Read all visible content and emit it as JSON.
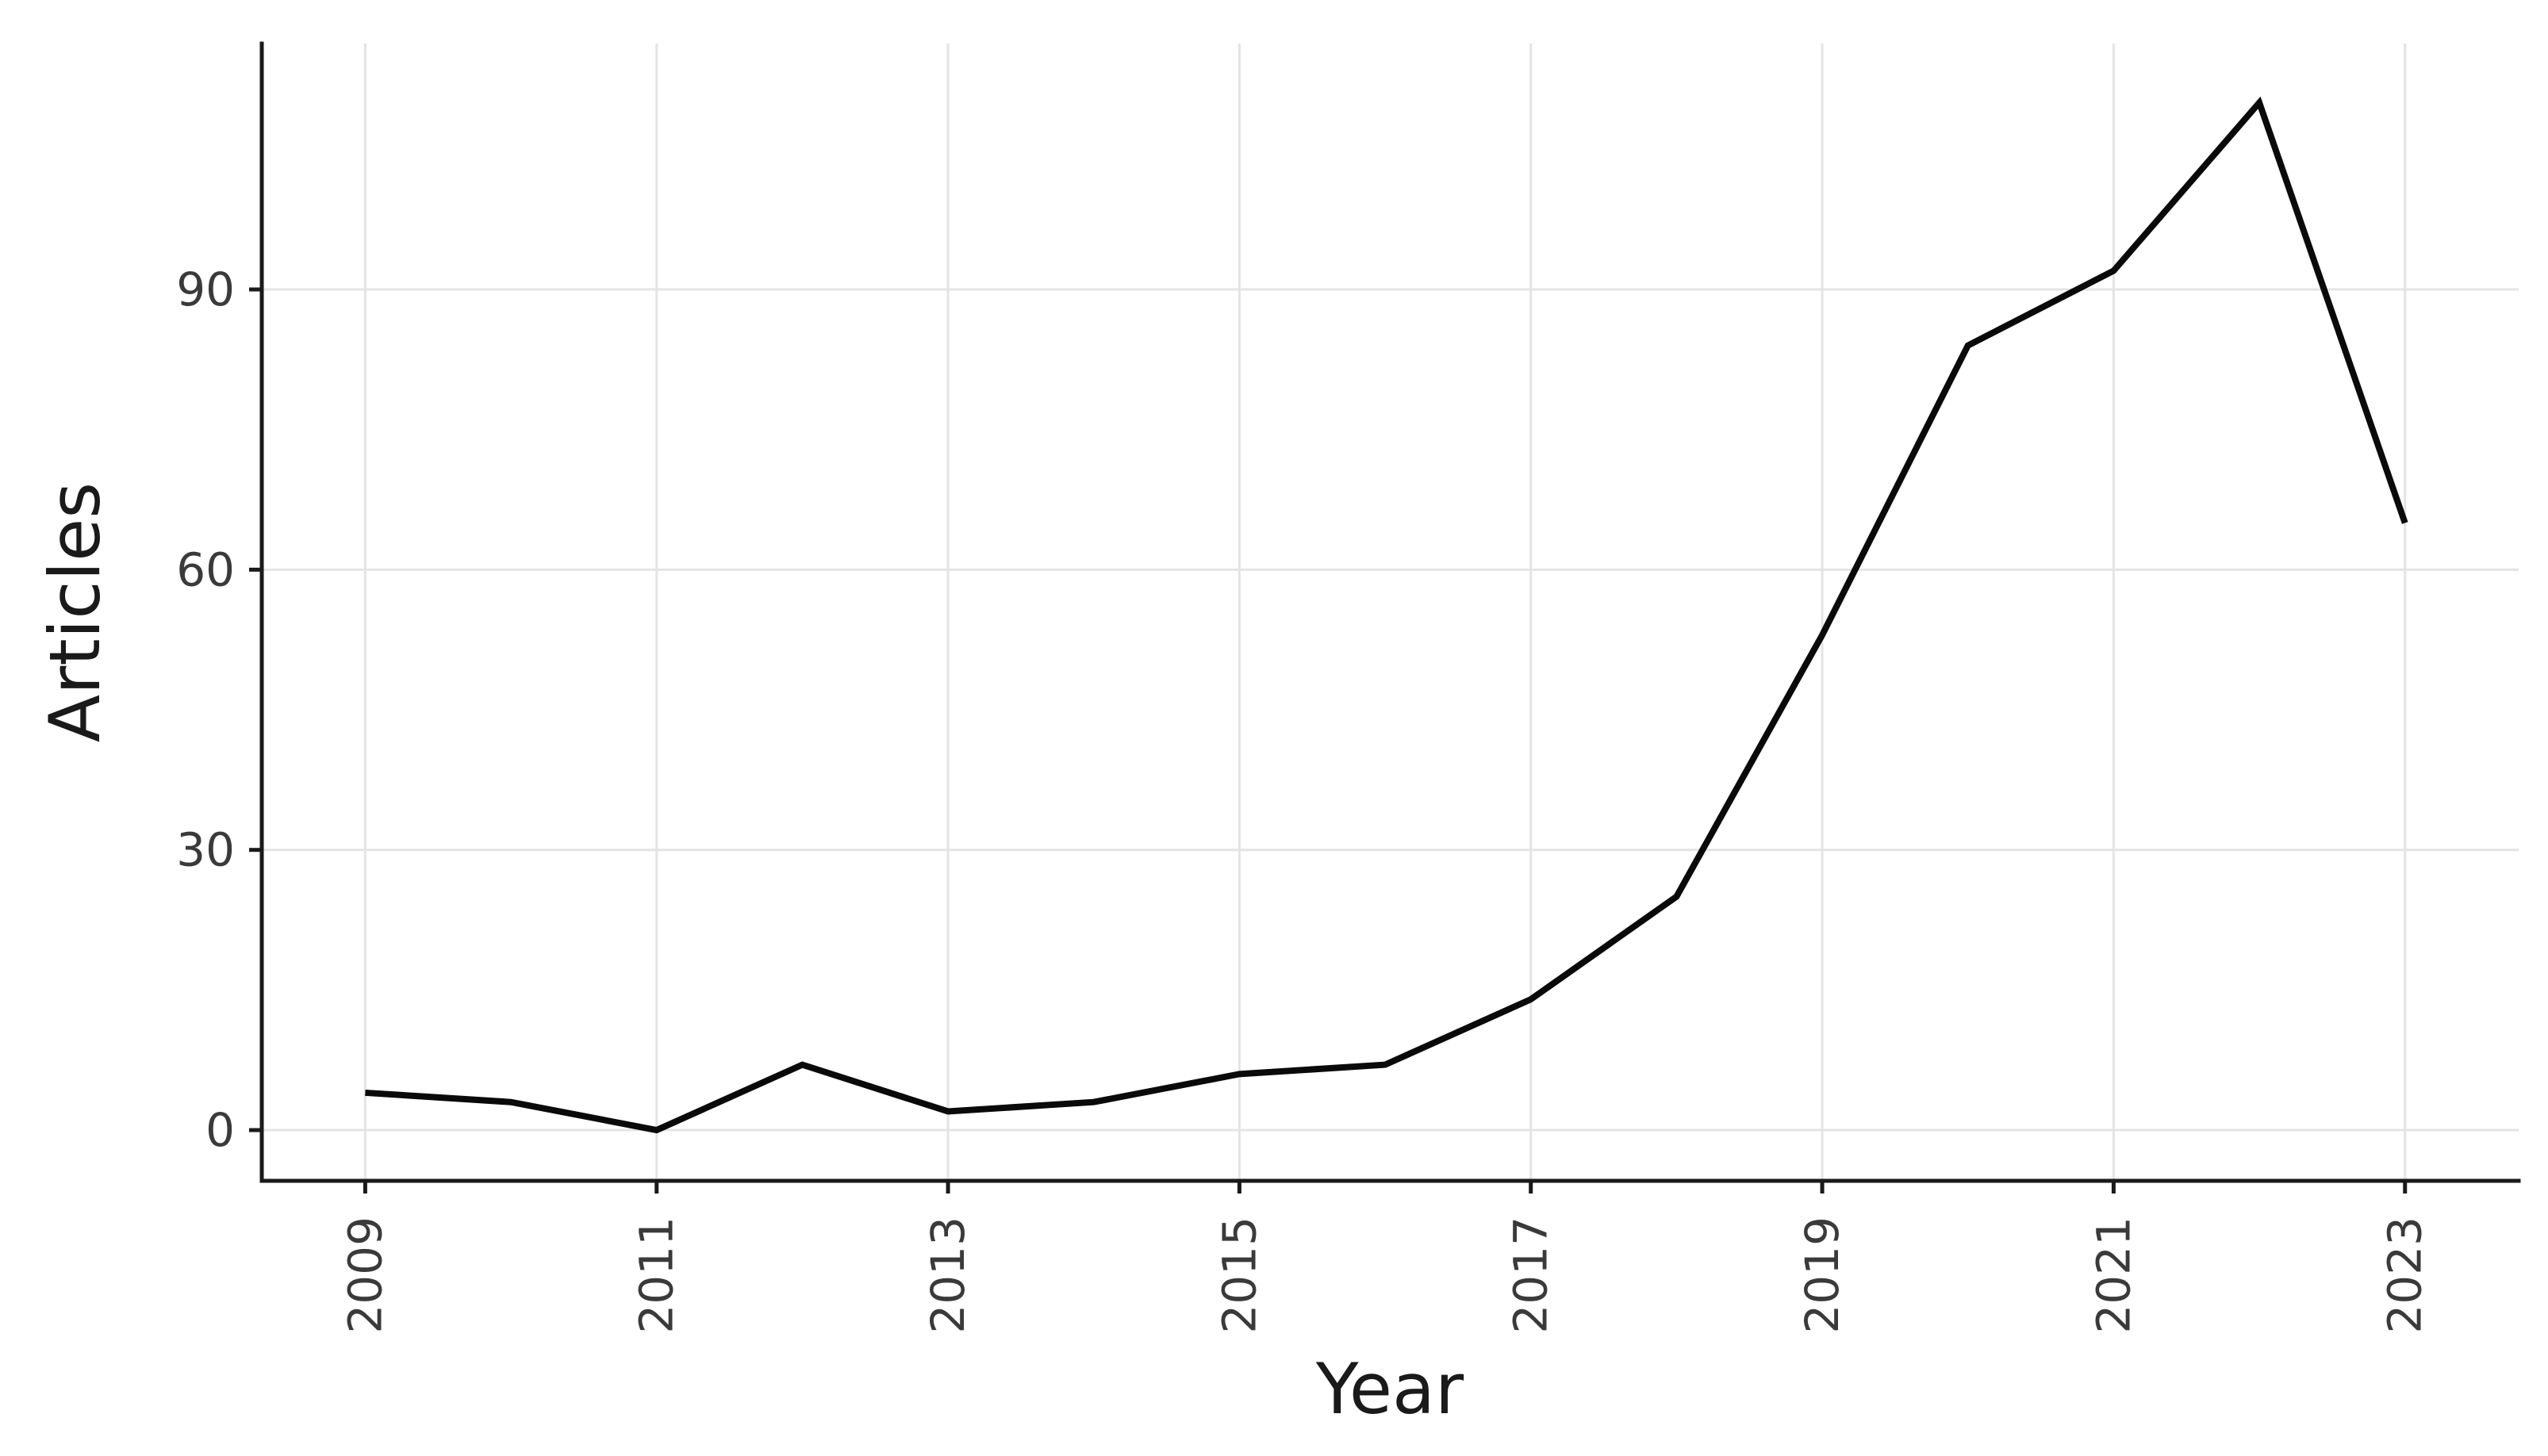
{
  "page": {
    "background": "#ffffff"
  },
  "chart_data": {
    "type": "line",
    "title": "",
    "xlabel": "Year",
    "ylabel": "Articles",
    "x": [
      2009,
      2010,
      2011,
      2012,
      2013,
      2014,
      2015,
      2016,
      2017,
      2018,
      2019,
      2020,
      2021,
      2022,
      2023
    ],
    "values": [
      4,
      3,
      0,
      7,
      2,
      3,
      6,
      7,
      14,
      25,
      53,
      84,
      92,
      110,
      65
    ],
    "series_name": "Articles",
    "xticks": [
      2009,
      2011,
      2013,
      2015,
      2017,
      2019,
      2021,
      2023
    ],
    "yticks": [
      0,
      30,
      60,
      90
    ],
    "xlim": [
      2008.29,
      2023.78
    ],
    "ylim": [
      -5.43,
      116.32
    ],
    "grid": "major",
    "legend": "none",
    "line_color": "#0a0a0a",
    "grid_color": "#e4e4e4",
    "axis_color": "#1a1a1a",
    "tick_label_color": "#3a3a3a"
  }
}
